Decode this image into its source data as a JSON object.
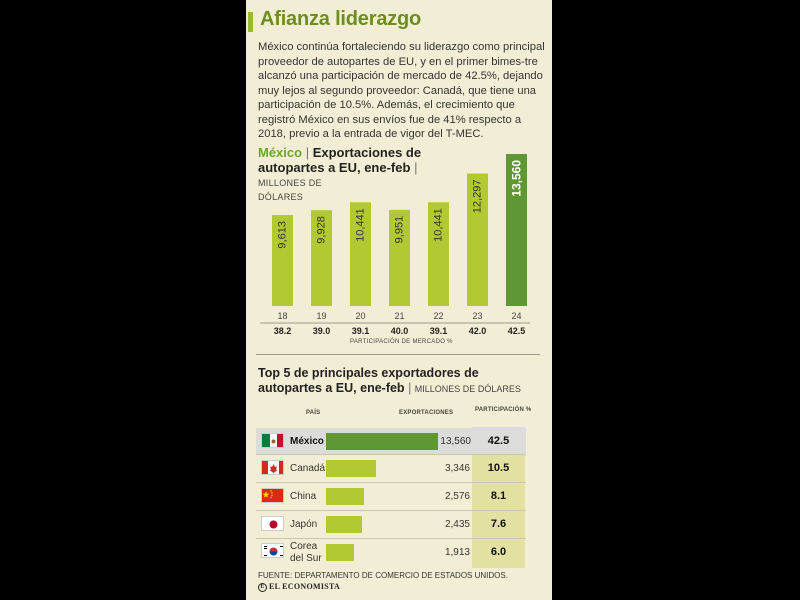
{
  "title": "Afianza liderazgo",
  "intro": "México continúa fortaleciendo su liderazgo como principal proveedor de autopartes de EU, y en el primer bimes-tre alcanzó una participación de mercado de 42.5%, dejando muy lejos al segundo proveedor: Canadá, que tiene una participación de 10.5%. Además, el crecimiento que registró México en sus envíos fue de 41% respecto a 2018, previo a la entrada de vigor del T-MEC.",
  "chart1_heading": {
    "country": "México",
    "sep": "|",
    "text": "Exportaciones de autopartes a EU, ene-feb",
    "units_line1": "MILLONES DE",
    "units_line2": "DÓLARES"
  },
  "chart2_heading": {
    "text": "Top 5 de principales exportadores de autopartes a EU, ene-feb",
    "sep": "|",
    "units": "MILLONES DE DÓLARES"
  },
  "table_headers": {
    "country": "PAÍS",
    "exports": "EXPORTACIONES",
    "share": "PARTICIPACIÓN",
    "share_unit": "%"
  },
  "source": "FUENTE: DEPARTAMENTO DE COMERCIO DE ESTADOS UNIDOS.",
  "brand": "EL ECONOMISTA",
  "brand_mark": "E",
  "colors": {
    "bar": "#b2c932",
    "bar_highlight": "#5f9735",
    "accent": "#9ab92f",
    "title": "#6c8e1e",
    "panel": "#f2eed5",
    "pct_col": "#e3e1a2"
  },
  "chart_data": [
    {
      "type": "bar",
      "title": "México | Exportaciones de autopartes a EU, ene-feb",
      "ylabel": "MILLONES DE DÓLARES",
      "xlabel": "PARTICIPACIÓN DE MERCADO %",
      "categories": [
        "18",
        "19",
        "20",
        "21",
        "22",
        "23",
        "24"
      ],
      "values": [
        9613,
        9928,
        10441,
        9951,
        10441,
        12297,
        13560
      ],
      "value_labels": [
        "9,613",
        "9,928",
        "10,441",
        "9,951",
        "10,441",
        "12,297",
        "13,560"
      ],
      "market_share": [
        "38.2",
        "39.0",
        "39.1",
        "40.0",
        "39.1",
        "42.0",
        "42.5"
      ],
      "ylim": [
        8000,
        13560
      ]
    },
    {
      "type": "bar",
      "orientation": "horizontal",
      "title": "Top 5 de principales exportadores de autopartes a EU, ene-feb",
      "ylabel": "MILLONES DE DÓLARES",
      "rows": [
        {
          "country_lines": [
            "México"
          ],
          "flag": "mexico-flag",
          "value": 13560,
          "value_label": "13,560",
          "share": "42.5"
        },
        {
          "country_lines": [
            "Canadá"
          ],
          "flag": "canada-flag",
          "value": 3346,
          "value_label": "3,346",
          "share": "10.5"
        },
        {
          "country_lines": [
            "China"
          ],
          "flag": "china-flag",
          "value": 2576,
          "value_label": "2,576",
          "share": "8.1"
        },
        {
          "country_lines": [
            "Japón"
          ],
          "flag": "japan-flag",
          "value": 2435,
          "value_label": "2,435",
          "share": "7.6"
        },
        {
          "country_lines": [
            "Corea",
            "del Sur"
          ],
          "flag": "south-korea-flag",
          "value": 1913,
          "value_label": "1,913",
          "share": "6.0"
        }
      ]
    }
  ]
}
